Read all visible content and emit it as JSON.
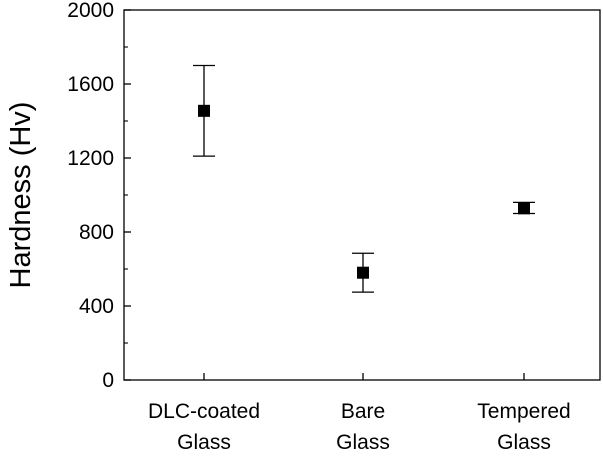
{
  "chart_data": {
    "type": "scatter",
    "title": "",
    "xlabel": "",
    "ylabel": "Hardness (Hv)",
    "ylim": [
      0,
      2000
    ],
    "yticks": [
      "0",
      "400",
      "800",
      "1200",
      "1600",
      "2000"
    ],
    "categories": [
      [
        "DLC-coated",
        "Glass"
      ],
      [
        "Bare",
        "Glass"
      ],
      [
        "Tempered",
        "Glass"
      ]
    ],
    "series": [
      {
        "points": [
          {
            "category": "DLC-coated Glass",
            "y": 1455,
            "y_low": 1210,
            "y_high": 1700
          },
          {
            "category": "Bare Glass",
            "y": 580,
            "y_low": 475,
            "y_high": 685
          },
          {
            "category": "Tempered Glass",
            "y": 928,
            "y_low": 900,
            "y_high": 960
          }
        ]
      }
    ],
    "marker": "square",
    "marker_color": "#000000",
    "grid": false,
    "legend": "none"
  }
}
